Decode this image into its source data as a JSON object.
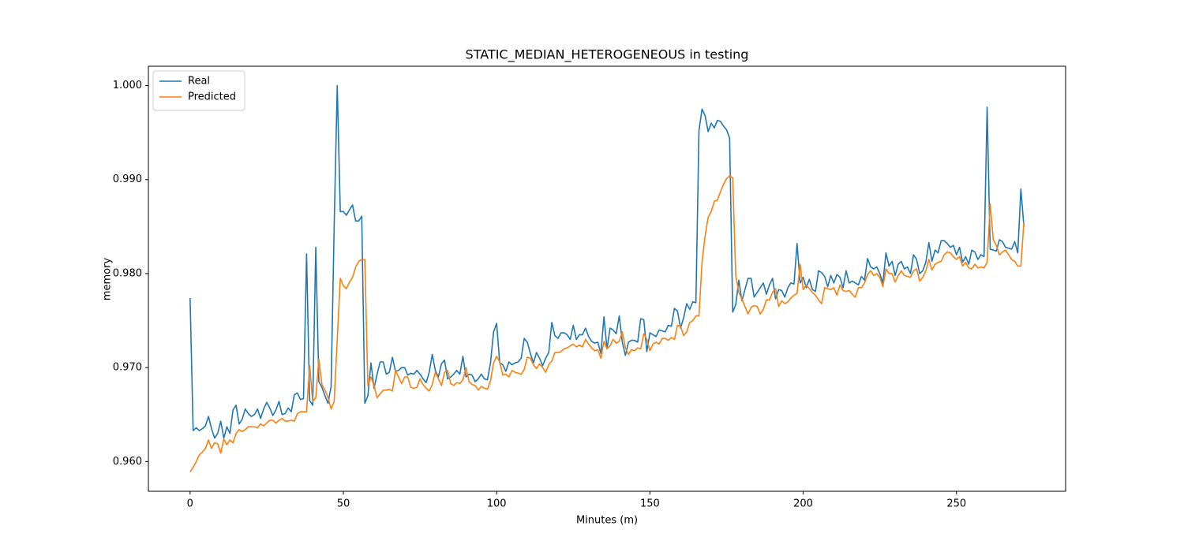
{
  "chart_data": {
    "type": "line",
    "title": "STATIC_MEDIAN_HETEROGENEOUS in testing",
    "x_label": "Minutes (m)",
    "y_label": "memory",
    "legend": "upper left",
    "x": [
      0,
      1,
      2,
      3,
      4,
      5,
      6,
      7,
      8,
      9,
      10,
      11,
      12,
      13,
      14,
      15,
      16,
      17,
      18,
      19,
      20,
      21,
      22,
      23,
      24,
      25,
      26,
      27,
      28,
      29,
      30,
      31,
      32,
      33,
      34,
      35,
      36,
      37,
      38,
      39,
      40,
      41,
      42,
      43,
      44,
      45,
      46,
      47,
      48,
      49,
      50,
      51,
      52,
      53,
      54,
      55,
      56,
      57,
      58,
      59,
      60,
      61,
      62,
      63,
      64,
      65,
      66,
      67,
      68,
      69,
      70,
      71,
      72,
      73,
      74,
      75,
      76,
      77,
      78,
      79,
      80,
      81,
      82,
      83,
      84,
      85,
      86,
      87,
      88,
      89,
      90,
      91,
      92,
      93,
      94,
      95,
      96,
      97,
      98,
      99,
      100,
      101,
      102,
      103,
      104,
      105,
      106,
      107,
      108,
      109,
      110,
      111,
      112,
      113,
      114,
      115,
      116,
      117,
      118,
      119,
      120,
      121,
      122,
      123,
      124,
      125,
      126,
      127,
      128,
      129,
      130,
      131,
      132,
      133,
      134,
      135,
      136,
      137,
      138,
      139,
      140,
      141,
      142,
      143,
      144,
      145,
      146,
      147,
      148,
      149,
      150,
      151,
      152,
      153,
      154,
      155,
      156,
      157,
      158,
      159,
      160,
      161,
      162,
      163,
      164,
      165,
      166,
      167,
      168,
      169,
      170,
      171,
      172,
      173,
      174,
      175,
      176,
      177,
      178,
      179,
      180,
      181,
      182,
      183,
      184,
      185,
      186,
      187,
      188,
      189,
      190,
      191,
      192,
      193,
      194,
      195,
      196,
      197,
      198,
      199,
      200,
      201,
      202,
      203,
      204,
      205,
      206,
      207,
      208,
      209,
      210,
      211,
      212,
      213,
      214,
      215,
      216,
      217,
      218,
      219,
      220,
      221,
      222,
      223,
      224,
      225,
      226,
      227,
      228,
      229,
      230,
      231,
      232,
      233,
      234,
      235,
      236,
      237,
      238,
      239,
      240,
      241,
      242,
      243,
      244,
      245,
      246,
      247,
      248,
      249,
      250,
      251,
      252,
      253,
      254,
      255,
      256,
      257,
      258,
      259,
      260,
      261,
      262,
      263,
      264,
      265,
      266,
      267,
      268,
      269,
      270,
      271,
      272
    ],
    "series": [
      {
        "name": "Real",
        "color": "#1f77b4",
        "values": [
          0.9774,
          0.9633,
          0.9636,
          0.9633,
          0.9635,
          0.9638,
          0.9648,
          0.9635,
          0.9625,
          0.963,
          0.9643,
          0.9625,
          0.9637,
          0.963,
          0.9655,
          0.966,
          0.964,
          0.9645,
          0.9656,
          0.9651,
          0.9648,
          0.965,
          0.9656,
          0.9646,
          0.9656,
          0.9663,
          0.9657,
          0.9649,
          0.9655,
          0.9664,
          0.965,
          0.9651,
          0.9657,
          0.9653,
          0.9671,
          0.9673,
          0.9666,
          0.9667,
          0.9821,
          0.9665,
          0.966,
          0.9828,
          0.9685,
          0.9679,
          0.967,
          0.9662,
          0.968,
          0.985,
          1.0,
          0.9866,
          0.9866,
          0.9862,
          0.9868,
          0.9873,
          0.9856,
          0.9856,
          0.9861,
          0.9662,
          0.967,
          0.9705,
          0.9678,
          0.9693,
          0.9706,
          0.9706,
          0.9693,
          0.9695,
          0.9711,
          0.9696,
          0.9697,
          0.97,
          0.97,
          0.9692,
          0.9694,
          0.9693,
          0.9697,
          0.9693,
          0.9688,
          0.9684,
          0.9695,
          0.9714,
          0.9697,
          0.969,
          0.9704,
          0.9708,
          0.9688,
          0.969,
          0.9693,
          0.9697,
          0.9693,
          0.9712,
          0.969,
          0.9693,
          0.9692,
          0.9685,
          0.9688,
          0.9693,
          0.9688,
          0.9687,
          0.9705,
          0.9738,
          0.9747,
          0.9705,
          0.9703,
          0.9696,
          0.9706,
          0.9703,
          0.9705,
          0.9706,
          0.971,
          0.9731,
          0.9727,
          0.9715,
          0.9705,
          0.9716,
          0.971,
          0.9702,
          0.971,
          0.9716,
          0.9748,
          0.9734,
          0.9731,
          0.9737,
          0.9737,
          0.9735,
          0.973,
          0.9745,
          0.973,
          0.9735,
          0.9735,
          0.9742,
          0.9733,
          0.9728,
          0.9726,
          0.9727,
          0.9715,
          0.9754,
          0.972,
          0.9742,
          0.974,
          0.9736,
          0.9755,
          0.9727,
          0.9713,
          0.9727,
          0.9729,
          0.9729,
          0.9727,
          0.9752,
          0.9751,
          0.9717,
          0.9737,
          0.9735,
          0.9733,
          0.974,
          0.9739,
          0.9738,
          0.9745,
          0.9744,
          0.9763,
          0.976,
          0.9742,
          0.9753,
          0.9768,
          0.9762,
          0.977,
          0.9769,
          0.9952,
          0.9975,
          0.9968,
          0.9951,
          0.996,
          0.9955,
          0.9963,
          0.9962,
          0.9957,
          0.9953,
          0.9944,
          0.9759,
          0.9767,
          0.9793,
          0.9771,
          0.9783,
          0.9795,
          0.9795,
          0.9775,
          0.978,
          0.9785,
          0.979,
          0.9778,
          0.9788,
          0.9795,
          0.9773,
          0.9783,
          0.9782,
          0.9775,
          0.9785,
          0.979,
          0.9789,
          0.9832,
          0.979,
          0.9796,
          0.9785,
          0.9794,
          0.9783,
          0.9781,
          0.9803,
          0.9801,
          0.9797,
          0.9786,
          0.9798,
          0.979,
          0.9799,
          0.9796,
          0.9785,
          0.9803,
          0.979,
          0.9792,
          0.979,
          0.9788,
          0.9797,
          0.9793,
          0.9816,
          0.9807,
          0.9805,
          0.9807,
          0.98,
          0.979,
          0.9822,
          0.9808,
          0.9813,
          0.9798,
          0.981,
          0.9813,
          0.9805,
          0.9807,
          0.98,
          0.982,
          0.9815,
          0.98,
          0.9803,
          0.9812,
          0.9833,
          0.9813,
          0.9825,
          0.9822,
          0.9835,
          0.9835,
          0.9832,
          0.9828,
          0.983,
          0.982,
          0.9828,
          0.9812,
          0.9818,
          0.981,
          0.9825,
          0.9823,
          0.9815,
          0.982,
          0.9818,
          0.9977,
          0.9826,
          0.9825,
          0.9824,
          0.9836,
          0.9834,
          0.9828,
          0.9827,
          0.9826,
          0.9834,
          0.9822,
          0.989,
          0.985
        ]
      },
      {
        "name": "Predicted",
        "color": "#ff7f0e",
        "values": [
          0.9589,
          0.9594,
          0.96,
          0.9607,
          0.961,
          0.9614,
          0.9623,
          0.9614,
          0.962,
          0.9619,
          0.9609,
          0.9624,
          0.9618,
          0.9623,
          0.962,
          0.963,
          0.9634,
          0.9632,
          0.9634,
          0.9637,
          0.9637,
          0.9637,
          0.9636,
          0.964,
          0.9638,
          0.9641,
          0.9644,
          0.9644,
          0.9641,
          0.9644,
          0.9646,
          0.9643,
          0.9643,
          0.9644,
          0.9643,
          0.9651,
          0.9653,
          0.9653,
          0.9653,
          0.9702,
          0.9664,
          0.9668,
          0.9709,
          0.9682,
          0.9676,
          0.9668,
          0.9656,
          0.9664,
          0.973,
          0.9795,
          0.9787,
          0.9784,
          0.9791,
          0.9796,
          0.9807,
          0.9813,
          0.9815,
          0.9815,
          0.9681,
          0.969,
          0.9681,
          0.9668,
          0.9672,
          0.9676,
          0.9676,
          0.9677,
          0.9675,
          0.9697,
          0.969,
          0.9683,
          0.969,
          0.969,
          0.9679,
          0.9678,
          0.9679,
          0.9688,
          0.9682,
          0.9678,
          0.9675,
          0.9682,
          0.9695,
          0.9688,
          0.9681,
          0.9695,
          0.9697,
          0.9683,
          0.9681,
          0.9684,
          0.9683,
          0.9687,
          0.97,
          0.9685,
          0.9682,
          0.9681,
          0.9676,
          0.968,
          0.9678,
          0.9677,
          0.9686,
          0.9705,
          0.9712,
          0.9706,
          0.9692,
          0.9693,
          0.969,
          0.9697,
          0.9695,
          0.9694,
          0.9693,
          0.9698,
          0.9711,
          0.971,
          0.9703,
          0.9699,
          0.9704,
          0.97,
          0.9695,
          0.9703,
          0.9707,
          0.9716,
          0.9716,
          0.9717,
          0.972,
          0.9721,
          0.9723,
          0.9725,
          0.9722,
          0.9724,
          0.9722,
          0.973,
          0.9725,
          0.9721,
          0.9718,
          0.9719,
          0.971,
          0.9728,
          0.972,
          0.9723,
          0.973,
          0.9726,
          0.9728,
          0.9738,
          0.9721,
          0.9714,
          0.9719,
          0.9718,
          0.9721,
          0.972,
          0.9736,
          0.973,
          0.9718,
          0.9725,
          0.9727,
          0.9725,
          0.9731,
          0.9731,
          0.9729,
          0.9732,
          0.973,
          0.9745,
          0.9744,
          0.9734,
          0.9738,
          0.9748,
          0.975,
          0.9755,
          0.9755,
          0.9812,
          0.984,
          0.986,
          0.9866,
          0.9877,
          0.9878,
          0.9887,
          0.9895,
          0.9901,
          0.9904,
          0.9902,
          0.9798,
          0.978,
          0.9773,
          0.9765,
          0.9757,
          0.9764,
          0.9766,
          0.9765,
          0.9757,
          0.9762,
          0.9772,
          0.9772,
          0.978,
          0.9784,
          0.9765,
          0.9771,
          0.9768,
          0.977,
          0.9774,
          0.9777,
          0.9779,
          0.981,
          0.9783,
          0.9788,
          0.9784,
          0.978,
          0.9777,
          0.9772,
          0.9768,
          0.9785,
          0.9784,
          0.9783,
          0.9785,
          0.9777,
          0.9788,
          0.9782,
          0.9781,
          0.9782,
          0.9778,
          0.9775,
          0.9785,
          0.9785,
          0.979,
          0.9799,
          0.9803,
          0.9798,
          0.98,
          0.9796,
          0.9786,
          0.9805,
          0.98,
          0.98,
          0.9791,
          0.9798,
          0.9803,
          0.9798,
          0.9797,
          0.9796,
          0.9803,
          0.9805,
          0.9792,
          0.9796,
          0.9803,
          0.9815,
          0.9804,
          0.981,
          0.9812,
          0.9813,
          0.982,
          0.9823,
          0.9822,
          0.9818,
          0.9815,
          0.9818,
          0.9808,
          0.9812,
          0.9806,
          0.9805,
          0.981,
          0.9806,
          0.9807,
          0.9806,
          0.9812,
          0.9874,
          0.9836,
          0.983,
          0.982,
          0.9823,
          0.9825,
          0.982,
          0.9815,
          0.9813,
          0.9808,
          0.9808,
          0.9855
        ]
      }
    ],
    "xlim": [
      -13.6,
      285.6
    ],
    "ylim": [
      0.95684,
      1.00206
    ],
    "xticks": [
      0,
      50,
      100,
      150,
      200,
      250
    ],
    "yticks": [
      {
        "value": 0.96,
        "label": "0.960"
      },
      {
        "value": 0.97,
        "label": "0.970"
      },
      {
        "value": 0.98,
        "label": "0.980"
      },
      {
        "value": 0.99,
        "label": "0.990"
      },
      {
        "value": 1.0,
        "label": "1.000"
      }
    ],
    "grid": false
  }
}
